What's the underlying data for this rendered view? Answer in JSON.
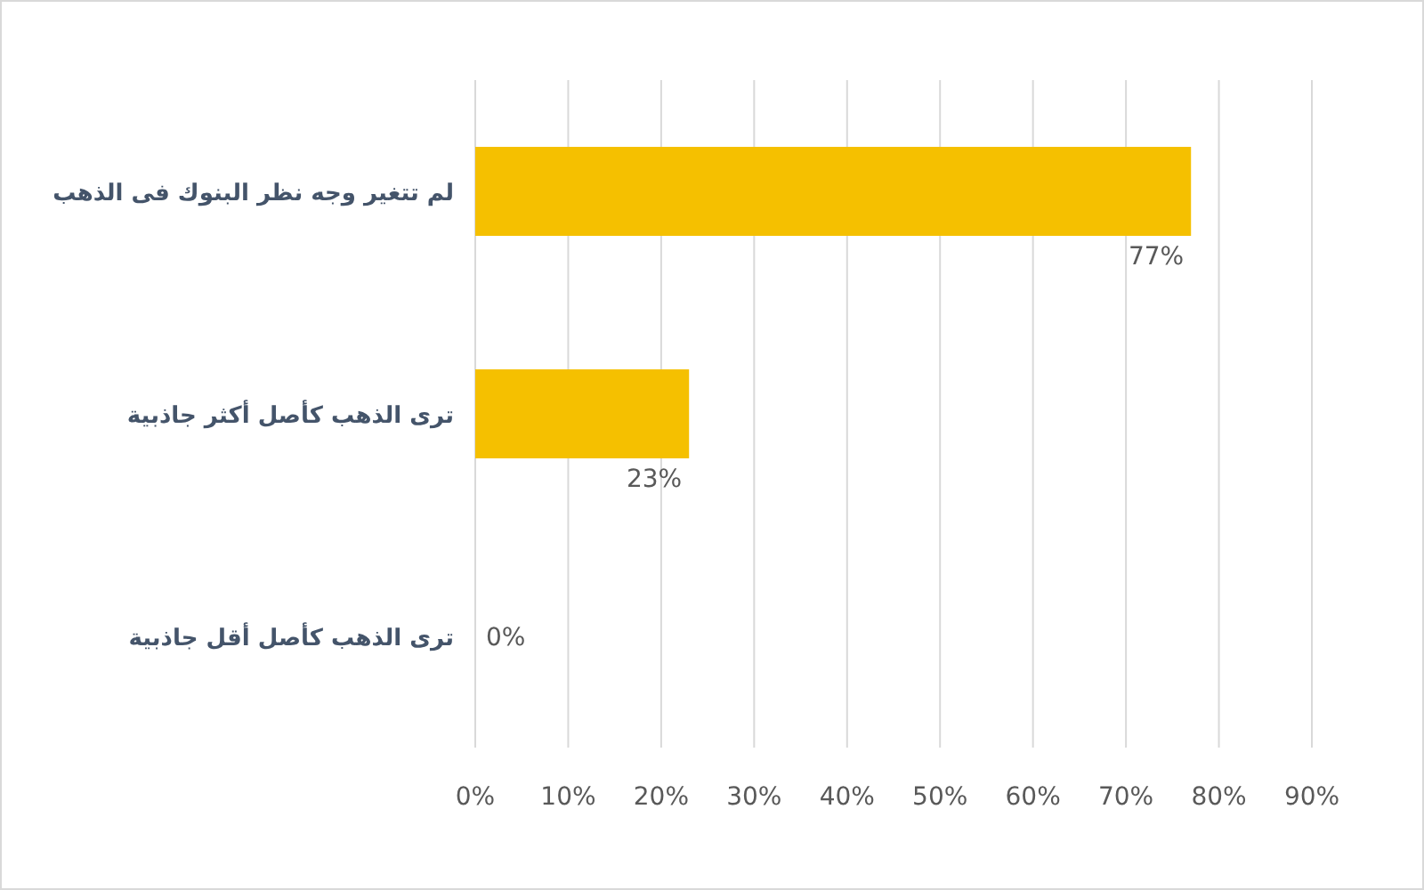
{
  "chart_data": {
    "type": "bar",
    "orientation": "horizontal",
    "categories": [
      "لم تتغير وجه نظر البنوك فى الذهب",
      "ترى الذهب كأصل أكثر جاذبية",
      "ترى الذهب كأصل أقل جاذبية"
    ],
    "values": [
      77,
      23,
      0
    ],
    "value_labels": [
      "77%",
      "23%",
      "0%"
    ],
    "color": "#f5c000",
    "xlim": [
      0,
      90
    ],
    "xticks": [
      {
        "value": 0,
        "label": "0%"
      },
      {
        "value": 10,
        "label": "10%"
      },
      {
        "value": 20,
        "label": "20%"
      },
      {
        "value": 30,
        "label": "30%"
      },
      {
        "value": 40,
        "label": "40%"
      },
      {
        "value": 50,
        "label": "50%"
      },
      {
        "value": 60,
        "label": "60%"
      },
      {
        "value": 70,
        "label": "70%"
      },
      {
        "value": 80,
        "label": "80%"
      },
      {
        "value": 90,
        "label": "90%"
      }
    ],
    "grid": "x"
  }
}
